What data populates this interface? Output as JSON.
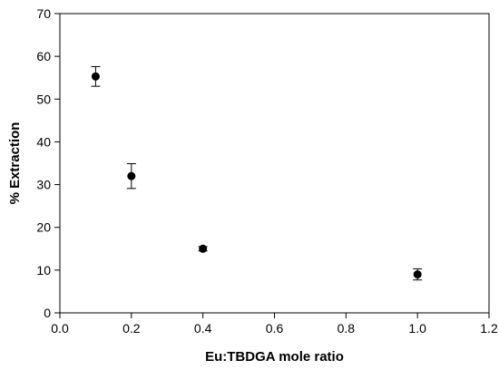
{
  "chart_data": {
    "type": "scatter",
    "xlabel": "Eu:TBDGA mole ratio",
    "ylabel": "% Extraction",
    "xlim": [
      0.0,
      1.2
    ],
    "ylim": [
      0,
      70
    ],
    "x_ticks": [
      "0.0",
      "0.2",
      "0.4",
      "0.6",
      "0.8",
      "1.0",
      "1.2"
    ],
    "y_ticks": [
      "0",
      "10",
      "20",
      "30",
      "40",
      "50",
      "60",
      "70"
    ],
    "grid": false,
    "marker_color": "#000000",
    "series": [
      {
        "points": [
          {
            "x": 0.1,
            "y": 55.3,
            "err": 2.3
          },
          {
            "x": 0.2,
            "y": 32.0,
            "err": 2.9
          },
          {
            "x": 0.4,
            "y": 15.0,
            "err": 0.5
          },
          {
            "x": 1.0,
            "y": 9.0,
            "err": 1.3
          }
        ]
      }
    ]
  }
}
